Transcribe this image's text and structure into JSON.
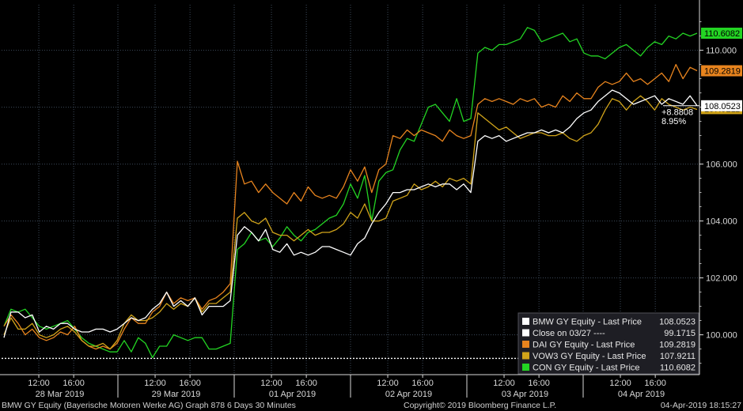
{
  "chart_data": {
    "type": "line",
    "y_axis": {
      "ticks": [
        100,
        102,
        104,
        106,
        110
      ],
      "labels": [
        "100.000",
        "102.000",
        "104.000",
        "106.000",
        "110.000"
      ],
      "ylim": [
        98.6,
        111.6
      ],
      "side": "right"
    },
    "x_axis": {
      "days": [
        "28 Mar 2019",
        "29 Mar 2019",
        "01 Apr 2019",
        "02 Apr 2019",
        "03 Apr 2019",
        "04 Apr 2019"
      ],
      "time_ticks": [
        "12:00",
        "16:00"
      ],
      "points_per_day": 17
    },
    "series": [
      {
        "name": "BMW GY Equity - Last Price",
        "color": "#ffffff",
        "last": "108.0523",
        "values": [
          99.9,
          100.8,
          100.8,
          100.6,
          100.7,
          100.1,
          100.3,
          100.2,
          100.4,
          100.4,
          100.2,
          100.1,
          100.1,
          100.2,
          100.2,
          100.1,
          100.2,
          100.4,
          100.6,
          100.5,
          100.6,
          100.9,
          101.1,
          101.5,
          101.0,
          101.2,
          101.0,
          101.3,
          100.7,
          101.0,
          101.0,
          101.0,
          101.2,
          103.5,
          103.8,
          103.6,
          103.3,
          103.7,
          103.0,
          102.9,
          103.2,
          102.8,
          102.9,
          102.8,
          102.9,
          103.1,
          103.1,
          103.0,
          102.9,
          102.8,
          103.2,
          103.4,
          103.9,
          104.3,
          104.6,
          105.0,
          105.0,
          105.1,
          105.1,
          105.2,
          105.3,
          105.2,
          105.3,
          105.3,
          105.1,
          105.3,
          105.0,
          106.8,
          107.0,
          106.9,
          107.0,
          106.8,
          106.9,
          107.0,
          107.1,
          107.1,
          107.2,
          107.1,
          107.2,
          107.1,
          107.3,
          107.6,
          107.8,
          107.9,
          108.2,
          108.4,
          108.6,
          108.5,
          108.3,
          108.1,
          108.2,
          108.3,
          108.4,
          108.1,
          108.3,
          108.2,
          108.1,
          108.4,
          108.05
        ]
      },
      {
        "name": "Close on 03/27 ----",
        "color": "#ffffff",
        "last": "99.1715",
        "value": 99.1715
      },
      {
        "name": "DAI GY Equity - Last Price",
        "color": "#e8841e",
        "last": "109.2819",
        "values": [
          100.3,
          100.7,
          100.4,
          100.0,
          100.2,
          99.9,
          99.8,
          99.9,
          100.1,
          100.0,
          100.3,
          99.8,
          99.6,
          99.5,
          99.6,
          99.5,
          99.7,
          100.2,
          100.6,
          100.4,
          100.4,
          100.8,
          101.0,
          101.5,
          101.1,
          101.3,
          101.2,
          101.3,
          100.9,
          101.2,
          101.3,
          101.5,
          101.8,
          106.1,
          105.3,
          105.4,
          105.0,
          105.3,
          105.0,
          104.8,
          104.6,
          105.0,
          104.7,
          105.2,
          104.9,
          104.8,
          104.9,
          104.8,
          105.2,
          105.8,
          105.4,
          105.9,
          105.0,
          105.8,
          106.0,
          107.0,
          106.9,
          107.2,
          107.0,
          107.2,
          107.1,
          107.0,
          106.8,
          107.2,
          107.0,
          106.9,
          107.0,
          108.1,
          108.3,
          108.2,
          108.3,
          108.2,
          108.1,
          108.3,
          108.2,
          108.3,
          108.0,
          108.1,
          108.0,
          108.4,
          108.2,
          108.5,
          108.3,
          108.3,
          108.7,
          108.9,
          108.8,
          108.9,
          109.2,
          108.9,
          109.0,
          108.8,
          109.0,
          109.2,
          108.9,
          109.5,
          109.0,
          109.4,
          109.28
        ]
      },
      {
        "name": "VOW3 GY Equity - Last Price",
        "color": "#d1a41a",
        "last": "107.9211",
        "values": [
          100.0,
          100.6,
          100.2,
          100.2,
          100.4,
          100.0,
          99.9,
          100.0,
          100.2,
          100.3,
          100.1,
          99.8,
          99.6,
          99.6,
          99.7,
          99.5,
          99.8,
          100.4,
          100.7,
          100.5,
          100.5,
          100.6,
          100.8,
          101.1,
          100.9,
          101.1,
          101.0,
          101.3,
          100.8,
          101.1,
          101.1,
          101.3,
          101.5,
          104.1,
          104.3,
          104.0,
          103.9,
          104.1,
          103.6,
          103.5,
          103.5,
          103.3,
          103.5,
          103.7,
          103.5,
          103.6,
          103.6,
          103.7,
          103.9,
          104.3,
          104.1,
          104.6,
          104.0,
          104.0,
          104.1,
          104.7,
          104.8,
          104.9,
          105.3,
          105.1,
          105.2,
          105.4,
          105.2,
          105.5,
          105.4,
          105.5,
          105.3,
          107.8,
          107.6,
          107.4,
          107.2,
          107.3,
          107.1,
          106.9,
          107.0,
          107.1,
          107.1,
          107.0,
          107.0,
          107.1,
          106.9,
          106.8,
          107.0,
          107.1,
          107.4,
          107.9,
          108.3,
          108.2,
          107.9,
          108.2,
          108.4,
          108.2,
          107.9,
          108.3,
          108.1,
          108.0,
          107.9,
          108.0,
          107.92
        ]
      },
      {
        "name": "CON GY Equity - Last Price",
        "color": "#23d423",
        "last": "110.6082",
        "values": [
          100.3,
          100.9,
          100.8,
          100.9,
          100.6,
          100.3,
          100.2,
          100.3,
          100.4,
          100.5,
          100.2,
          99.9,
          99.7,
          99.6,
          99.5,
          99.4,
          99.4,
          99.8,
          99.4,
          99.9,
          99.7,
          99.2,
          99.6,
          99.6,
          100.0,
          99.9,
          99.8,
          99.9,
          99.9,
          99.5,
          99.5,
          99.6,
          99.7,
          103.0,
          103.2,
          103.6,
          103.3,
          103.4,
          103.1,
          103.4,
          103.8,
          103.5,
          103.3,
          103.6,
          103.7,
          103.9,
          104.1,
          104.2,
          104.6,
          105.3,
          104.8,
          105.6,
          104.0,
          105.4,
          105.7,
          105.8,
          106.5,
          106.9,
          106.8,
          107.4,
          108.0,
          108.1,
          107.8,
          107.5,
          108.3,
          107.5,
          107.6,
          109.9,
          110.1,
          110.0,
          110.2,
          110.2,
          110.3,
          110.4,
          110.8,
          110.7,
          110.3,
          110.4,
          110.5,
          110.6,
          110.3,
          110.4,
          109.9,
          109.8,
          109.8,
          109.7,
          109.9,
          110.1,
          110.2,
          110.0,
          109.8,
          110.1,
          110.3,
          110.2,
          110.5,
          110.4,
          110.6,
          110.5,
          110.6
        ]
      }
    ],
    "annotations": {
      "change": "+8.8808",
      "change_pct": "8.95%"
    }
  },
  "colors": {
    "background": "#000000",
    "grid": "#3c4a5a",
    "axis": "#d8d8d8",
    "legend_bg": "#1e1e24"
  },
  "footer": {
    "left": "BMW GY Equity (Bayerische Motoren Werke AG) Graph 878 6 Days 30 Minutes",
    "middle": "Copyright© 2019 Bloomberg Finance L.P.",
    "right": "04-Apr-2019 18:15:27"
  }
}
